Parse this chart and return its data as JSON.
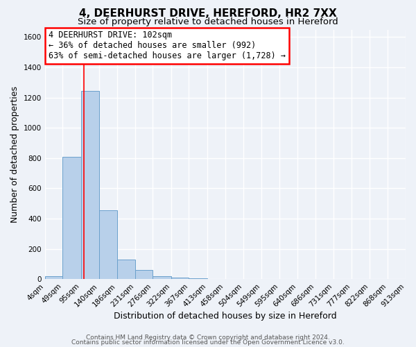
{
  "title": "4, DEERHURST DRIVE, HEREFORD, HR2 7XX",
  "subtitle": "Size of property relative to detached houses in Hereford",
  "xlabel": "Distribution of detached houses by size in Hereford",
  "ylabel": "Number of detached properties",
  "bar_values": [
    20,
    810,
    1245,
    455,
    130,
    60,
    20,
    10,
    5,
    0,
    0,
    0,
    0,
    0,
    0,
    0,
    0,
    0,
    0,
    0
  ],
  "bin_edges": [
    4,
    49,
    95,
    140,
    186,
    231,
    276,
    322,
    367,
    413,
    458,
    504,
    549,
    595,
    640,
    686,
    731,
    777,
    822,
    868,
    913
  ],
  "tick_labels": [
    "4sqm",
    "49sqm",
    "95sqm",
    "140sqm",
    "186sqm",
    "231sqm",
    "276sqm",
    "322sqm",
    "367sqm",
    "413sqm",
    "458sqm",
    "504sqm",
    "549sqm",
    "595sqm",
    "640sqm",
    "686sqm",
    "731sqm",
    "777sqm",
    "822sqm",
    "868sqm",
    "913sqm"
  ],
  "bar_color": "#b8d0ea",
  "bar_edge_color": "#6aa0cc",
  "redline_x": 102,
  "ylim": [
    0,
    1650
  ],
  "yticks": [
    0,
    200,
    400,
    600,
    800,
    1000,
    1200,
    1400,
    1600
  ],
  "annotation_line1": "4 DEERHURST DRIVE: 102sqm",
  "annotation_line2": "← 36% of detached houses are smaller (992)",
  "annotation_line3": "63% of semi-detached houses are larger (1,728) →",
  "footer_line1": "Contains HM Land Registry data © Crown copyright and database right 2024.",
  "footer_line2": "Contains public sector information licensed under the Open Government Licence v3.0.",
  "background_color": "#eef2f8",
  "grid_color": "#ffffff",
  "title_fontsize": 11,
  "subtitle_fontsize": 9.5,
  "axis_label_fontsize": 9,
  "tick_fontsize": 7.5,
  "annotation_fontsize": 8.5,
  "footer_fontsize": 6.5
}
